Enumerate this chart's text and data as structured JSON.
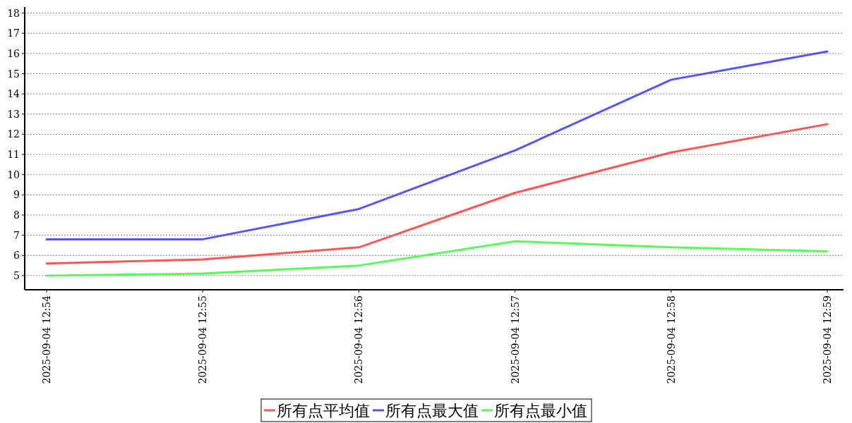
{
  "chart_data": {
    "type": "line",
    "categories": [
      "2025-09-04 12:54",
      "2025-09-04 12:55",
      "2025-09-04 12:56",
      "2025-09-04 12:57",
      "2025-09-04 12:58",
      "2025-09-04 12:59"
    ],
    "series": [
      {
        "name": "所有点平均值",
        "color": "#ff5555",
        "values": [
          5.6,
          5.8,
          6.4,
          9.1,
          11.1,
          12.5
        ]
      },
      {
        "name": "所有点最大值",
        "color": "#5555ff",
        "values": [
          6.8,
          6.8,
          8.3,
          11.2,
          14.7,
          16.1
        ]
      },
      {
        "name": "所有点最小值",
        "color": "#55ff55",
        "values": [
          5.0,
          5.1,
          5.5,
          6.7,
          6.4,
          6.2
        ]
      }
    ],
    "ylim": [
      4.3,
      18.3
    ],
    "yticks": [
      5,
      6,
      7,
      8,
      9,
      10,
      11,
      12,
      13,
      14,
      15,
      16,
      17,
      18
    ],
    "grid": "y",
    "legend": "bottom"
  }
}
